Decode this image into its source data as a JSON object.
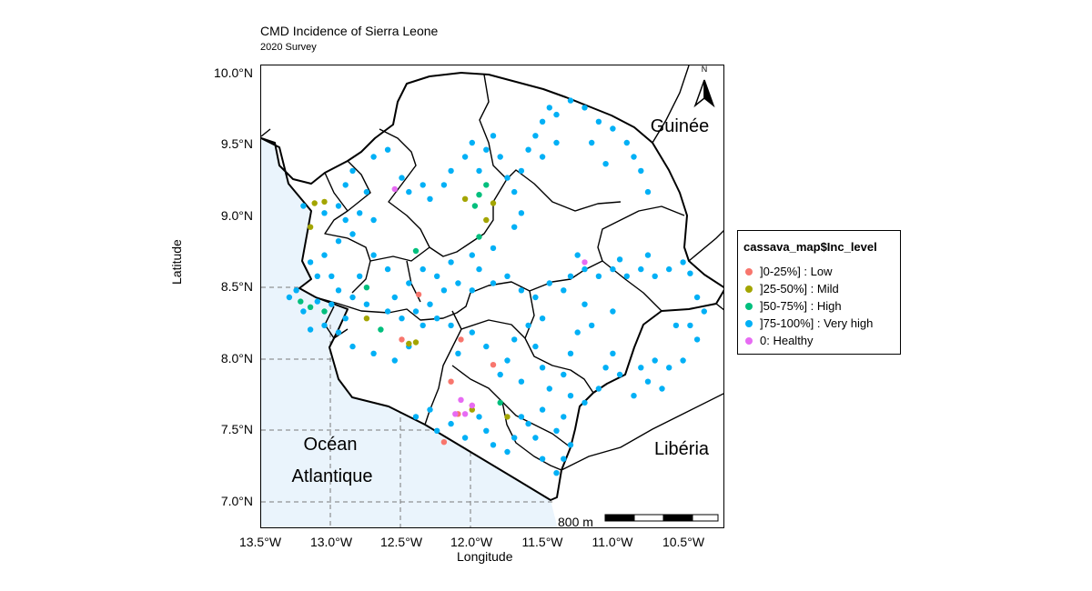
{
  "map": {
    "title": "CMD Incidence of Sierra Leone",
    "subtitle": "2020 Survey",
    "x_label": "Longitude",
    "y_label": "Latitude",
    "y_ticks": [
      "10.0°N",
      "9.5°N",
      "9.0°N",
      "8.5°N",
      "8.0°N",
      "7.5°N",
      "7.0°N"
    ],
    "x_ticks": [
      "13.5°W",
      "13.0°W",
      "12.5°W",
      "12.0°W",
      "11.5°W",
      "11.0°W",
      "10.5°W"
    ],
    "labels": {
      "guinee": "Guinée",
      "liberia": "Libéria",
      "ocean_line1": "Océan",
      "ocean_line2": "Atlantique"
    },
    "north_arrow": "N",
    "scale_bar": "800 m",
    "colors": {
      "low": "#F8766D",
      "mild": "#A3A500",
      "high": "#00BF7D",
      "very_high": "#00B0F6",
      "healthy": "#E76BF3",
      "sea": "#EAF4FC"
    }
  },
  "legend": {
    "title": "cassava_map$Inc_level",
    "items": [
      {
        "label": "]0-25%] : Low",
        "color": "#F8766D"
      },
      {
        "label": "]25-50%] : Mild",
        "color": "#A3A500"
      },
      {
        "label": "]50-75%] : High",
        "color": "#00BF7D"
      },
      {
        "label": "]75-100%] : Very high",
        "color": "#00B0F6"
      },
      {
        "label": "0: Healthy",
        "color": "#E76BF3"
      }
    ]
  },
  "survey_points": {
    "low": [
      [
        -12.38,
        8.47
      ],
      [
        -12.5,
        8.15
      ],
      [
        -12.15,
        7.85
      ],
      [
        -12.08,
        8.15
      ],
      [
        -12.2,
        7.42
      ],
      [
        -12.1,
        7.62
      ],
      [
        -12.0,
        7.68
      ],
      [
        -11.85,
        7.97
      ]
    ],
    "mild": [
      [
        -13.15,
        8.95
      ],
      [
        -13.12,
        9.12
      ],
      [
        -13.05,
        9.13
      ],
      [
        -12.75,
        8.3
      ],
      [
        -12.4,
        8.13
      ],
      [
        -12.45,
        8.12
      ],
      [
        -12.05,
        9.15
      ],
      [
        -11.9,
        9.0
      ],
      [
        -11.85,
        9.12
      ],
      [
        -12.0,
        7.65
      ],
      [
        -11.75,
        7.6
      ]
    ],
    "high": [
      [
        -13.22,
        8.42
      ],
      [
        -13.15,
        8.38
      ],
      [
        -13.05,
        8.35
      ],
      [
        -12.75,
        8.52
      ],
      [
        -12.65,
        8.22
      ],
      [
        -12.4,
        8.78
      ],
      [
        -11.95,
        9.18
      ],
      [
        -11.9,
        9.25
      ],
      [
        -11.98,
        9.1
      ],
      [
        -11.95,
        8.88
      ],
      [
        -11.8,
        7.7
      ]
    ],
    "healthy": [
      [
        -12.55,
        9.22
      ],
      [
        -11.2,
        8.7
      ],
      [
        -12.12,
        7.62
      ],
      [
        -12.05,
        7.62
      ],
      [
        -12.0,
        7.68
      ],
      [
        -12.08,
        7.72
      ]
    ],
    "very_high": [
      [
        -13.3,
        8.45
      ],
      [
        -13.25,
        8.5
      ],
      [
        -13.2,
        8.35
      ],
      [
        -13.1,
        8.42
      ],
      [
        -13.0,
        8.4
      ],
      [
        -12.95,
        8.5
      ],
      [
        -13.0,
        8.6
      ],
      [
        -13.1,
        8.6
      ],
      [
        -13.15,
        8.7
      ],
      [
        -13.05,
        8.75
      ],
      [
        -12.95,
        8.85
      ],
      [
        -12.85,
        8.9
      ],
      [
        -12.9,
        9.0
      ],
      [
        -13.05,
        9.05
      ],
      [
        -13.2,
        9.1
      ],
      [
        -12.95,
        9.1
      ],
      [
        -12.8,
        9.05
      ],
      [
        -12.7,
        9.0
      ],
      [
        -12.75,
        9.2
      ],
      [
        -12.9,
        9.25
      ],
      [
        -12.85,
        9.35
      ],
      [
        -12.7,
        9.45
      ],
      [
        -12.6,
        9.5
      ],
      [
        -12.5,
        9.3
      ],
      [
        -12.45,
        9.2
      ],
      [
        -12.35,
        9.25
      ],
      [
        -12.3,
        9.15
      ],
      [
        -12.2,
        9.25
      ],
      [
        -12.15,
        9.35
      ],
      [
        -12.05,
        9.45
      ],
      [
        -12.0,
        9.55
      ],
      [
        -11.95,
        9.35
      ],
      [
        -11.9,
        9.5
      ],
      [
        -11.85,
        9.6
      ],
      [
        -11.8,
        9.45
      ],
      [
        -11.75,
        9.3
      ],
      [
        -11.65,
        9.35
      ],
      [
        -11.6,
        9.5
      ],
      [
        -11.55,
        9.6
      ],
      [
        -11.5,
        9.7
      ],
      [
        -11.45,
        9.8
      ],
      [
        -11.4,
        9.75
      ],
      [
        -11.3,
        9.85
      ],
      [
        -11.2,
        9.8
      ],
      [
        -11.1,
        9.7
      ],
      [
        -11.0,
        9.65
      ],
      [
        -10.9,
        9.55
      ],
      [
        -10.85,
        9.45
      ],
      [
        -10.8,
        9.35
      ],
      [
        -10.75,
        9.2
      ],
      [
        -11.05,
        9.4
      ],
      [
        -11.15,
        9.55
      ],
      [
        -11.4,
        9.55
      ],
      [
        -11.5,
        9.45
      ],
      [
        -11.7,
        9.2
      ],
      [
        -11.65,
        9.05
      ],
      [
        -11.7,
        8.95
      ],
      [
        -11.85,
        8.8
      ],
      [
        -12.0,
        8.75
      ],
      [
        -12.15,
        8.7
      ],
      [
        -12.25,
        8.6
      ],
      [
        -12.35,
        8.65
      ],
      [
        -12.45,
        8.55
      ],
      [
        -12.55,
        8.45
      ],
      [
        -12.6,
        8.65
      ],
      [
        -12.7,
        8.75
      ],
      [
        -12.8,
        8.6
      ],
      [
        -12.85,
        8.45
      ],
      [
        -12.75,
        8.4
      ],
      [
        -12.6,
        8.35
      ],
      [
        -12.5,
        8.3
      ],
      [
        -12.4,
        8.35
      ],
      [
        -12.3,
        8.4
      ],
      [
        -12.2,
        8.5
      ],
      [
        -12.1,
        8.55
      ],
      [
        -12.0,
        8.5
      ],
      [
        -11.95,
        8.65
      ],
      [
        -11.85,
        8.55
      ],
      [
        -11.75,
        8.6
      ],
      [
        -11.65,
        8.5
      ],
      [
        -11.55,
        8.45
      ],
      [
        -11.45,
        8.55
      ],
      [
        -11.35,
        8.5
      ],
      [
        -11.3,
        8.6
      ],
      [
        -11.2,
        8.65
      ],
      [
        -11.1,
        8.6
      ],
      [
        -11.0,
        8.65
      ],
      [
        -10.9,
        8.6
      ],
      [
        -10.8,
        8.65
      ],
      [
        -10.7,
        8.6
      ],
      [
        -10.6,
        8.65
      ],
      [
        -10.5,
        8.7
      ],
      [
        -10.45,
        8.62
      ],
      [
        -10.75,
        8.75
      ],
      [
        -10.95,
        8.72
      ],
      [
        -11.25,
        8.75
      ],
      [
        -10.4,
        8.45
      ],
      [
        -10.35,
        8.35
      ],
      [
        -10.45,
        8.25
      ],
      [
        -10.55,
        8.25
      ],
      [
        -10.4,
        8.15
      ],
      [
        -10.5,
        8.0
      ],
      [
        -10.6,
        7.95
      ],
      [
        -10.7,
        8.0
      ],
      [
        -10.8,
        7.95
      ],
      [
        -10.75,
        7.85
      ],
      [
        -10.65,
        7.8
      ],
      [
        -10.85,
        7.75
      ],
      [
        -10.95,
        7.9
      ],
      [
        -11.0,
        8.05
      ],
      [
        -11.05,
        7.95
      ],
      [
        -11.1,
        7.8
      ],
      [
        -11.2,
        7.7
      ],
      [
        -11.15,
        8.25
      ],
      [
        -11.0,
        8.35
      ],
      [
        -11.2,
        8.4
      ],
      [
        -11.25,
        8.2
      ],
      [
        -11.3,
        8.05
      ],
      [
        -11.35,
        7.9
      ],
      [
        -11.3,
        7.75
      ],
      [
        -11.35,
        7.6
      ],
      [
        -11.4,
        7.5
      ],
      [
        -11.3,
        7.4
      ],
      [
        -11.35,
        7.3
      ],
      [
        -11.4,
        7.2
      ],
      [
        -11.5,
        7.3
      ],
      [
        -11.55,
        7.45
      ],
      [
        -11.6,
        7.55
      ],
      [
        -11.7,
        7.45
      ],
      [
        -11.75,
        7.35
      ],
      [
        -11.85,
        7.4
      ],
      [
        -11.9,
        7.5
      ],
      [
        -11.65,
        7.6
      ],
      [
        -11.5,
        7.65
      ],
      [
        -11.45,
        7.8
      ],
      [
        -11.5,
        7.95
      ],
      [
        -11.55,
        8.1
      ],
      [
        -11.6,
        8.25
      ],
      [
        -11.5,
        8.3
      ],
      [
        -11.7,
        8.15
      ],
      [
        -11.75,
        8.0
      ],
      [
        -11.8,
        7.9
      ],
      [
        -11.65,
        7.85
      ],
      [
        -11.9,
        8.1
      ],
      [
        -12.0,
        8.2
      ],
      [
        -12.1,
        8.05
      ],
      [
        -12.15,
        8.25
      ],
      [
        -12.25,
        8.3
      ],
      [
        -12.35,
        8.25
      ],
      [
        -12.45,
        8.1
      ],
      [
        -12.55,
        8.0
      ],
      [
        -12.7,
        8.05
      ],
      [
        -12.85,
        8.1
      ],
      [
        -12.95,
        8.2
      ],
      [
        -13.05,
        8.25
      ],
      [
        -13.15,
        8.22
      ],
      [
        -12.9,
        8.3
      ],
      [
        -12.25,
        7.5
      ],
      [
        -12.15,
        7.55
      ],
      [
        -12.05,
        7.45
      ],
      [
        -11.95,
        7.6
      ],
      [
        -12.3,
        7.65
      ],
      [
        -12.4,
        7.6
      ]
    ]
  }
}
